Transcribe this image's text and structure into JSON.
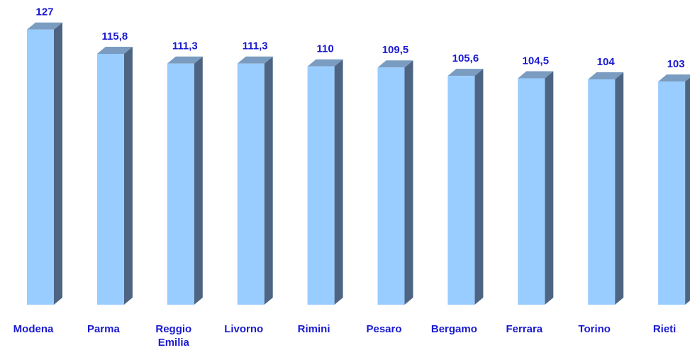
{
  "chart_data": {
    "type": "bar3d",
    "categories": [
      "Modena",
      "Parma",
      "Reggio Emilia",
      "Livorno",
      "Rimini",
      "Pesaro",
      "Bergamo",
      "Ferrara",
      "Torino",
      "Rieti"
    ],
    "values": [
      127,
      115.8,
      111.3,
      111.3,
      110,
      109.5,
      105.6,
      104.5,
      104,
      103
    ],
    "value_labels": [
      "127",
      "115,8",
      "111,3",
      "111,3",
      "110",
      "109,5",
      "105,6",
      "104,5",
      "104",
      "103"
    ],
    "color": "#99ccff",
    "ylim": [
      0,
      140
    ]
  }
}
